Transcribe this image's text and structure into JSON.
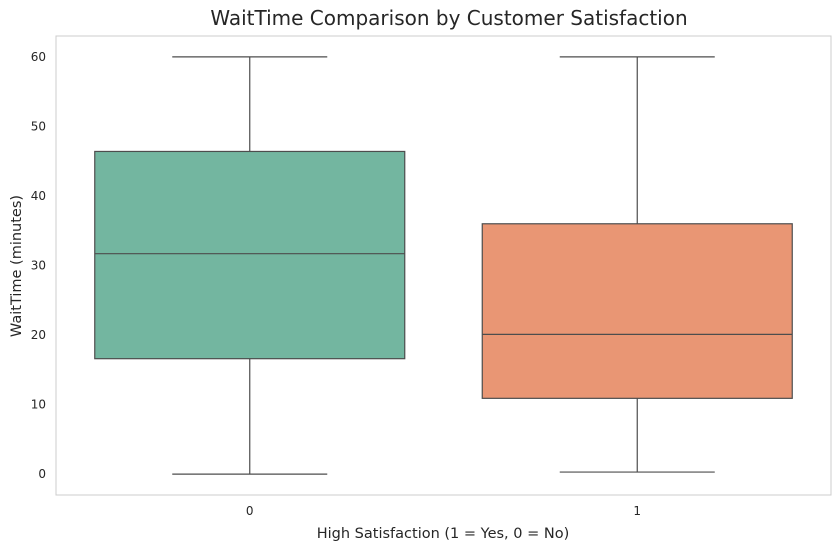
{
  "chart_data": {
    "type": "box",
    "title": "WaitTime Comparison by Customer Satisfaction",
    "xlabel": "High Satisfaction (1 = Yes, 0 = No)",
    "ylabel": "WaitTime (minutes)",
    "categories": [
      "0",
      "1"
    ],
    "ylim": [
      -3,
      63
    ],
    "yticks": [
      0,
      10,
      20,
      30,
      40,
      50,
      60
    ],
    "grid": false,
    "boxes": [
      {
        "category": "0",
        "whisker_low": 0,
        "q1": 16.6,
        "median": 31.7,
        "q3": 46.4,
        "whisker_high": 60,
        "color": "#73b6a0"
      },
      {
        "category": "1",
        "whisker_low": 0.3,
        "q1": 10.9,
        "median": 20.1,
        "q3": 36.0,
        "whisker_high": 60,
        "color": "#e99674"
      }
    ],
    "line_color": "#4d4d4d",
    "frame_color": "#cccccc"
  }
}
